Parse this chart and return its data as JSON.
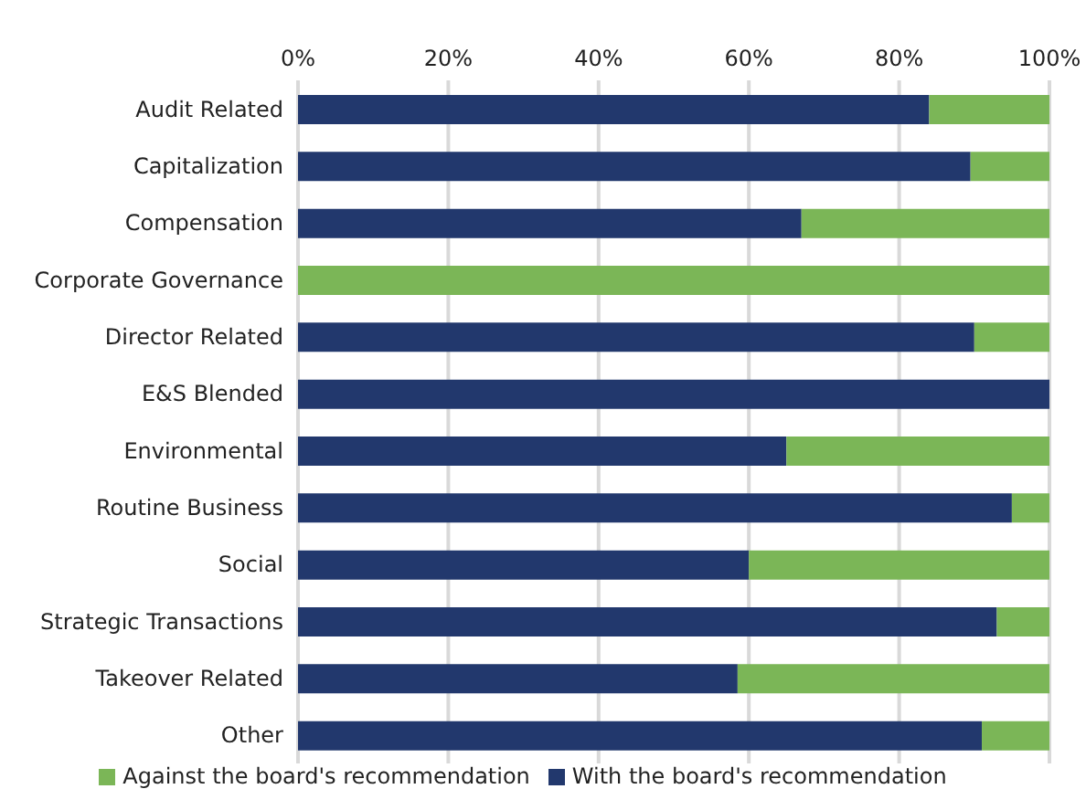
{
  "chart_data": {
    "type": "bar",
    "orientation": "horizontal",
    "stacked": true,
    "categories": [
      "Audit Related",
      "Capitalization",
      "Compensation",
      "Corporate Governance",
      "Director Related",
      "E&S Blended",
      "Environmental",
      "Routine Business",
      "Social",
      "Strategic Transactions",
      "Takeover Related",
      "Other"
    ],
    "series": [
      {
        "name": "With the board's recommendation",
        "color": "#22386d",
        "values": [
          84,
          89.5,
          67,
          0,
          90,
          100,
          65,
          95,
          60,
          93,
          58.5,
          91
        ]
      },
      {
        "name": "Against the board's recommendation",
        "color": "#7bb657",
        "values": [
          16,
          10.5,
          33,
          100,
          10,
          0,
          35,
          5,
          40,
          7,
          41.5,
          9
        ]
      }
    ],
    "xlim": [
      0,
      100
    ],
    "xticks": [
      {
        "value": 0,
        "label": "0%"
      },
      {
        "value": 20,
        "label": "20%"
      },
      {
        "value": 40,
        "label": "40%"
      },
      {
        "value": 60,
        "label": "60%"
      },
      {
        "value": 80,
        "label": "80%"
      },
      {
        "value": 100,
        "label": "100%"
      }
    ],
    "grid": "x",
    "legend": "bottom"
  }
}
